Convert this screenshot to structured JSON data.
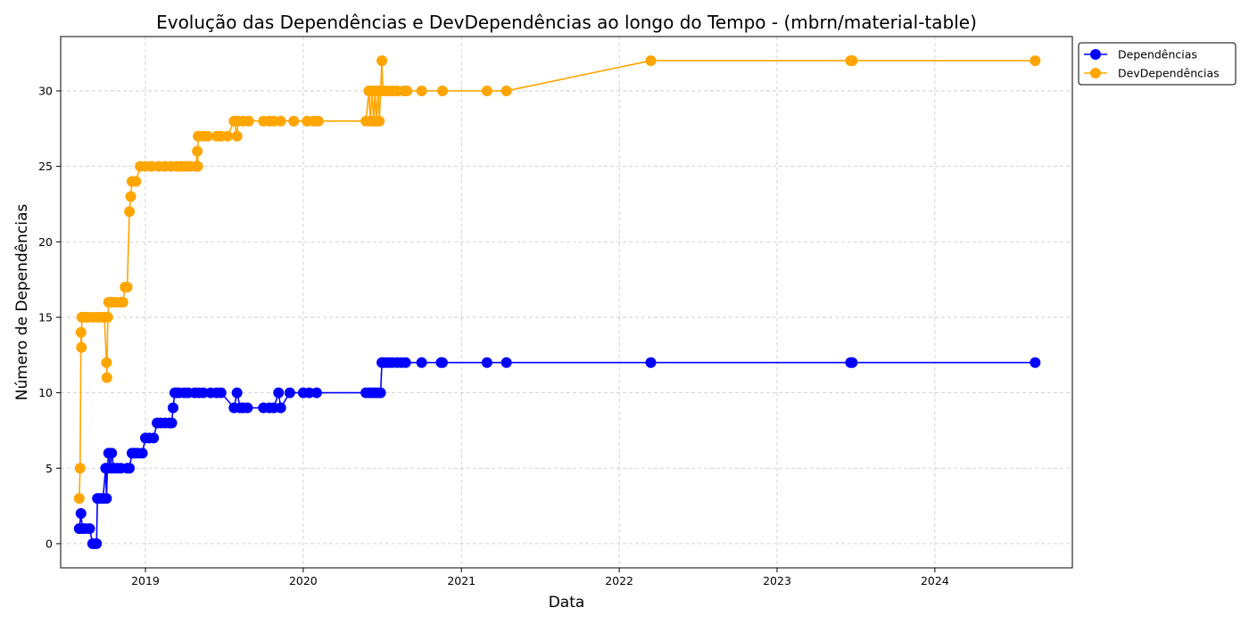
{
  "chart_data": {
    "type": "line",
    "title": "Evolução das Dependências e DevDependências ao longo do Tempo - (mbrn/material-table)",
    "xlabel": "Data",
    "ylabel": "Número de Dependências",
    "xlim": [
      "2018-06-19",
      "2024-11-14"
    ],
    "ylim": [
      -1.6,
      33.6
    ],
    "x_ticks": [
      "2019",
      "2020",
      "2021",
      "2022",
      "2023",
      "2024"
    ],
    "y_ticks": [
      0,
      5,
      10,
      15,
      20,
      25,
      30
    ],
    "grid": true,
    "legend_position": "outside-top-right",
    "series": [
      {
        "name": "Dependências",
        "color": "#0000ff",
        "points": [
          [
            "2018-08-01",
            1
          ],
          [
            "2018-08-05",
            2
          ],
          [
            "2018-08-08",
            1
          ],
          [
            "2018-08-15",
            1
          ],
          [
            "2018-08-25",
            1
          ],
          [
            "2018-09-01",
            0
          ],
          [
            "2018-09-05",
            0
          ],
          [
            "2018-09-10",
            0
          ],
          [
            "2018-09-12",
            3
          ],
          [
            "2018-09-18",
            3
          ],
          [
            "2018-09-25",
            3
          ],
          [
            "2018-10-01",
            5
          ],
          [
            "2018-10-03",
            3
          ],
          [
            "2018-10-05",
            5
          ],
          [
            "2018-10-08",
            6
          ],
          [
            "2018-10-12",
            5
          ],
          [
            "2018-10-15",
            6
          ],
          [
            "2018-10-20",
            5
          ],
          [
            "2018-10-28",
            5
          ],
          [
            "2018-11-05",
            5
          ],
          [
            "2018-11-20",
            5
          ],
          [
            "2018-11-25",
            5
          ],
          [
            "2018-12-01",
            6
          ],
          [
            "2018-12-08",
            6
          ],
          [
            "2018-12-15",
            6
          ],
          [
            "2018-12-25",
            6
          ],
          [
            "2019-01-01",
            7
          ],
          [
            "2019-01-10",
            7
          ],
          [
            "2019-01-20",
            7
          ],
          [
            "2019-01-28",
            8
          ],
          [
            "2019-02-05",
            8
          ],
          [
            "2019-02-15",
            8
          ],
          [
            "2019-02-25",
            8
          ],
          [
            "2019-03-03",
            8
          ],
          [
            "2019-03-06",
            9
          ],
          [
            "2019-03-10",
            10
          ],
          [
            "2019-03-15",
            10
          ],
          [
            "2019-03-20",
            10
          ],
          [
            "2019-04-01",
            10
          ],
          [
            "2019-04-10",
            10
          ],
          [
            "2019-04-25",
            10
          ],
          [
            "2019-05-05",
            10
          ],
          [
            "2019-05-15",
            10
          ],
          [
            "2019-06-01",
            10
          ],
          [
            "2019-06-15",
            10
          ],
          [
            "2019-06-25",
            10
          ],
          [
            "2019-07-25",
            9
          ],
          [
            "2019-08-01",
            10
          ],
          [
            "2019-08-08",
            9
          ],
          [
            "2019-08-15",
            9
          ],
          [
            "2019-08-25",
            9
          ],
          [
            "2019-10-01",
            9
          ],
          [
            "2019-10-15",
            9
          ],
          [
            "2019-10-25",
            9
          ],
          [
            "2019-11-05",
            10
          ],
          [
            "2019-11-10",
            9
          ],
          [
            "2019-12-01",
            10
          ],
          [
            "2020-01-01",
            10
          ],
          [
            "2020-01-15",
            10
          ],
          [
            "2020-02-01",
            10
          ],
          [
            "2020-05-25",
            10
          ],
          [
            "2020-06-01",
            10
          ],
          [
            "2020-06-08",
            10
          ],
          [
            "2020-06-15",
            10
          ],
          [
            "2020-06-22",
            10
          ],
          [
            "2020-06-28",
            10
          ],
          [
            "2020-07-01",
            12
          ],
          [
            "2020-07-05",
            12
          ],
          [
            "2020-07-10",
            12
          ],
          [
            "2020-07-18",
            12
          ],
          [
            "2020-07-25",
            12
          ],
          [
            "2020-08-05",
            12
          ],
          [
            "2020-08-15",
            12
          ],
          [
            "2020-08-25",
            12
          ],
          [
            "2020-10-01",
            12
          ],
          [
            "2020-11-15",
            12
          ],
          [
            "2020-11-18",
            12
          ],
          [
            "2021-03-01",
            12
          ],
          [
            "2021-04-15",
            12
          ],
          [
            "2022-03-15",
            12
          ],
          [
            "2023-06-20",
            12
          ],
          [
            "2023-06-24",
            12
          ],
          [
            "2024-08-20",
            12
          ]
        ]
      },
      {
        "name": "DevDependências",
        "color": "#ffa500",
        "points": [
          [
            "2018-08-01",
            3
          ],
          [
            "2018-08-03",
            5
          ],
          [
            "2018-08-05",
            14
          ],
          [
            "2018-08-06",
            13
          ],
          [
            "2018-08-07",
            15
          ],
          [
            "2018-08-12",
            15
          ],
          [
            "2018-08-20",
            15
          ],
          [
            "2018-09-01",
            15
          ],
          [
            "2018-09-10",
            15
          ],
          [
            "2018-09-20",
            15
          ],
          [
            "2018-09-28",
            15
          ],
          [
            "2018-10-03",
            12
          ],
          [
            "2018-10-04",
            11
          ],
          [
            "2018-10-06",
            15
          ],
          [
            "2018-10-08",
            16
          ],
          [
            "2018-10-15",
            16
          ],
          [
            "2018-10-25",
            16
          ],
          [
            "2018-11-05",
            16
          ],
          [
            "2018-11-10",
            16
          ],
          [
            "2018-11-15",
            17
          ],
          [
            "2018-11-20",
            17
          ],
          [
            "2018-11-25",
            22
          ],
          [
            "2018-11-28",
            23
          ],
          [
            "2018-12-01",
            24
          ],
          [
            "2018-12-10",
            24
          ],
          [
            "2018-12-20",
            25
          ],
          [
            "2019-01-01",
            25
          ],
          [
            "2019-01-15",
            25
          ],
          [
            "2019-02-01",
            25
          ],
          [
            "2019-02-15",
            25
          ],
          [
            "2019-03-01",
            25
          ],
          [
            "2019-03-15",
            25
          ],
          [
            "2019-03-25",
            25
          ],
          [
            "2019-04-05",
            25
          ],
          [
            "2019-04-15",
            25
          ],
          [
            "2019-04-28",
            25
          ],
          [
            "2019-05-01",
            26
          ],
          [
            "2019-05-02",
            25
          ],
          [
            "2019-05-03",
            27
          ],
          [
            "2019-05-15",
            27
          ],
          [
            "2019-05-25",
            27
          ],
          [
            "2019-06-15",
            27
          ],
          [
            "2019-06-25",
            27
          ],
          [
            "2019-07-10",
            27
          ],
          [
            "2019-07-25",
            28
          ],
          [
            "2019-08-01",
            27
          ],
          [
            "2019-08-03",
            28
          ],
          [
            "2019-08-15",
            28
          ],
          [
            "2019-08-28",
            28
          ],
          [
            "2019-10-01",
            28
          ],
          [
            "2019-10-15",
            28
          ],
          [
            "2019-10-25",
            28
          ],
          [
            "2019-11-10",
            28
          ],
          [
            "2019-12-10",
            28
          ],
          [
            "2020-01-10",
            28
          ],
          [
            "2020-01-25",
            28
          ],
          [
            "2020-02-05",
            28
          ],
          [
            "2020-05-25",
            28
          ],
          [
            "2020-06-01",
            30
          ],
          [
            "2020-06-04",
            28
          ],
          [
            "2020-06-08",
            30
          ],
          [
            "2020-06-12",
            28
          ],
          [
            "2020-06-15",
            30
          ],
          [
            "2020-06-18",
            28
          ],
          [
            "2020-06-22",
            30
          ],
          [
            "2020-06-25",
            28
          ],
          [
            "2020-06-28",
            30
          ],
          [
            "2020-07-01",
            32
          ],
          [
            "2020-07-03",
            30
          ],
          [
            "2020-07-10",
            30
          ],
          [
            "2020-07-20",
            30
          ],
          [
            "2020-07-28",
            30
          ],
          [
            "2020-08-05",
            30
          ],
          [
            "2020-08-20",
            30
          ],
          [
            "2020-08-28",
            30
          ],
          [
            "2020-10-01",
            30
          ],
          [
            "2020-11-18",
            30
          ],
          [
            "2021-03-01",
            30
          ],
          [
            "2021-04-15",
            30
          ],
          [
            "2022-03-15",
            32
          ],
          [
            "2023-06-20",
            32
          ],
          [
            "2023-06-24",
            32
          ],
          [
            "2024-08-20",
            32
          ]
        ]
      }
    ]
  }
}
